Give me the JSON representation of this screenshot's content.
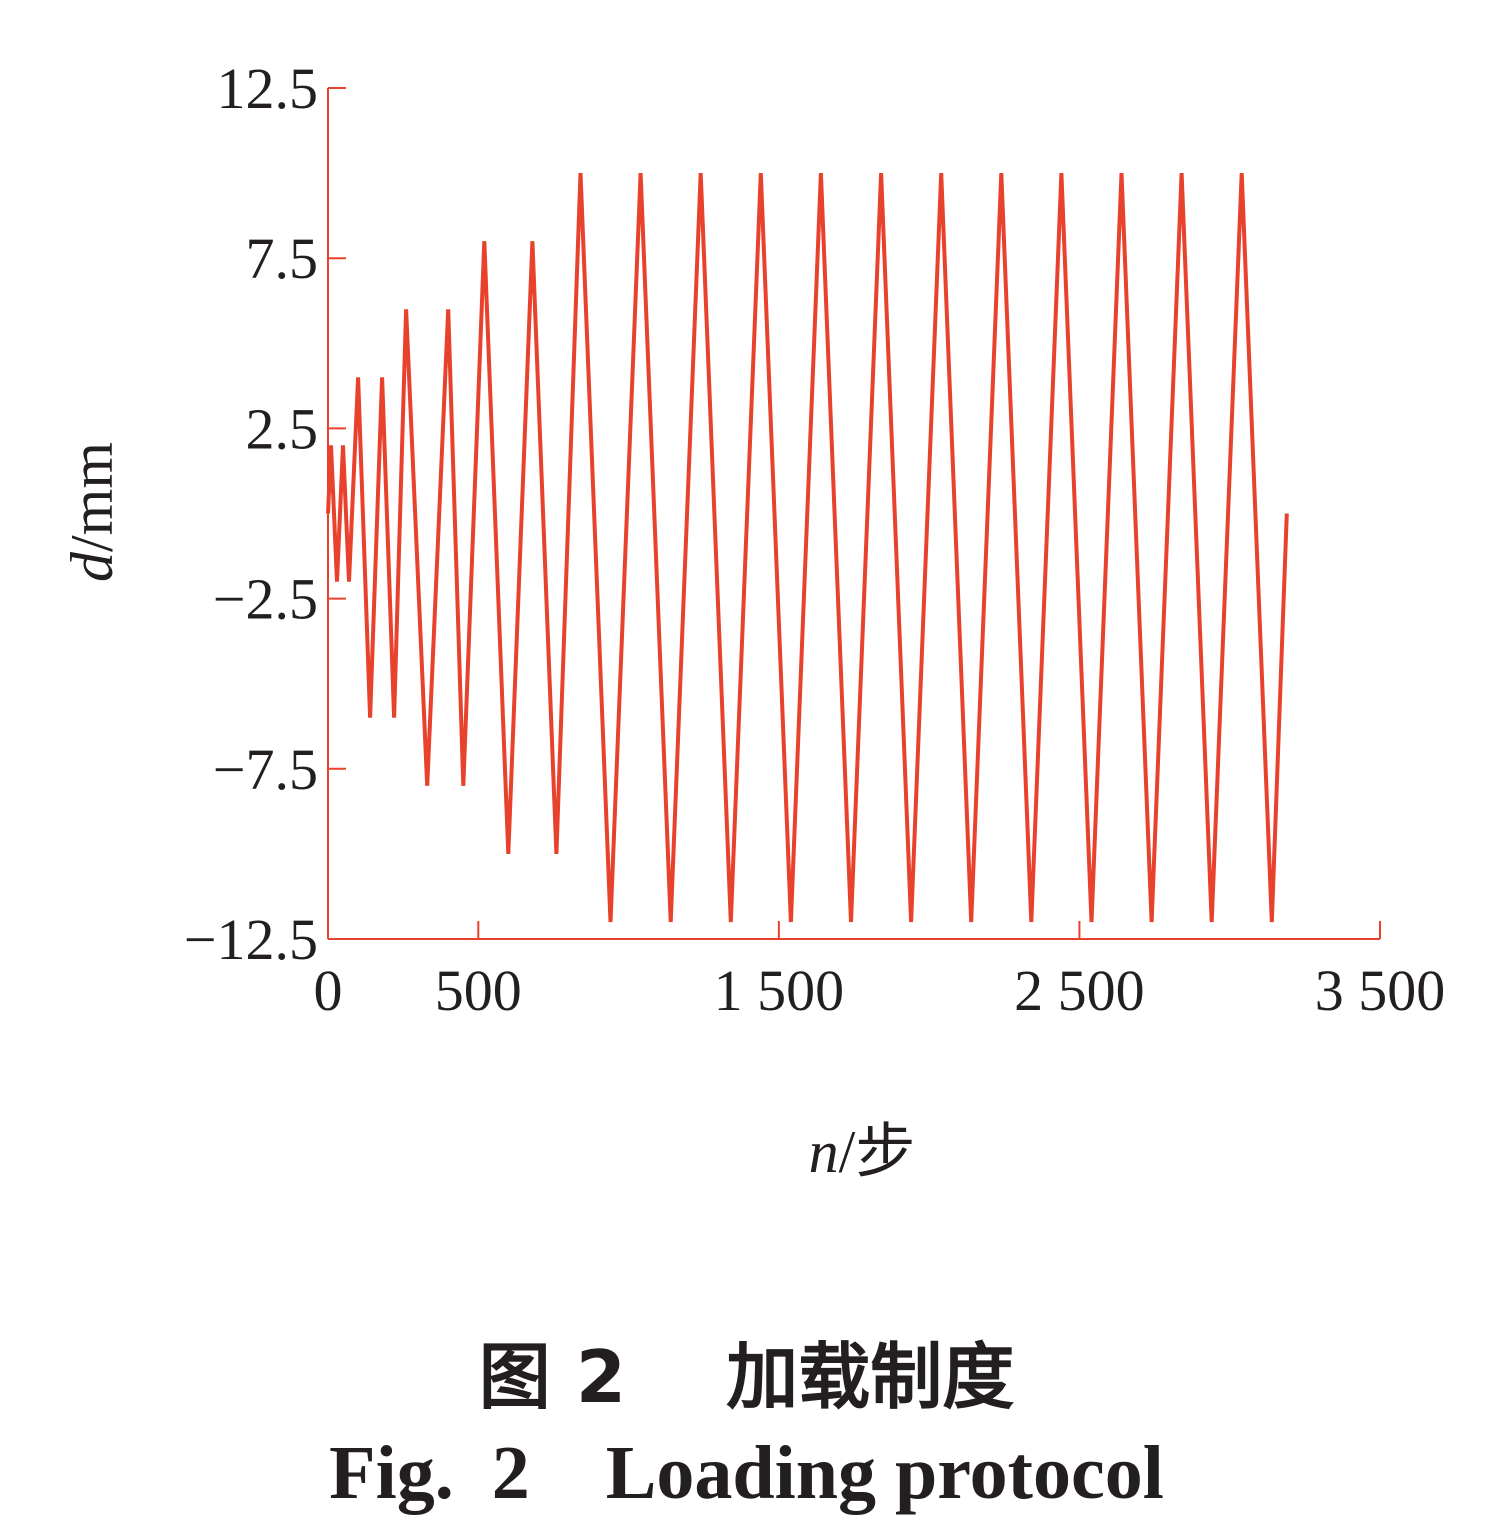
{
  "chart_data": {
    "type": "line",
    "title": "",
    "xlabel_var": "n",
    "xlabel_unit": "/步",
    "ylabel_var": "d",
    "ylabel_unit": "/mm",
    "xlim": [
      0,
      3500
    ],
    "ylim": [
      -12.5,
      12.5
    ],
    "x_ticks": [
      0,
      500,
      1500,
      2500,
      3500
    ],
    "x_tick_labels": [
      "0",
      "500",
      "1 500",
      "2 500",
      "3 500"
    ],
    "y_ticks": [
      12.5,
      7.5,
      2.5,
      -2.5,
      -7.5,
      -12.5
    ],
    "y_tick_labels": [
      "12.5",
      "7.5",
      "2.5",
      "−2.5",
      "−7.5",
      "−12.5"
    ],
    "grid": false,
    "line_color": "#e8412c",
    "series": [
      {
        "x": [
          0,
          10,
          30,
          50,
          70,
          100,
          140,
          180,
          220,
          260,
          330,
          400,
          450,
          520,
          600,
          680,
          760,
          840,
          940,
          1040,
          1140,
          1240,
          1340,
          1440,
          1540,
          1640,
          1740,
          1840,
          1940,
          2040,
          2140,
          2240,
          2340,
          2440,
          2540,
          2640,
          2740,
          2840,
          2940,
          3040,
          3140,
          3190
        ],
        "y": [
          0,
          2,
          -2,
          2,
          -2,
          4,
          -6,
          4,
          -6,
          6,
          -8,
          6,
          -8,
          8,
          -10,
          8,
          -10,
          10,
          -12,
          10,
          -12,
          10,
          -12,
          10,
          -12,
          10,
          -12,
          10,
          -12,
          10,
          -12,
          10,
          -12,
          10,
          -12,
          10,
          -12,
          10,
          -12,
          10,
          -12,
          0
        ]
      }
    ]
  },
  "captions": {
    "cn": "图 2    加载制度",
    "en": "Fig.  2    Loading protocol"
  }
}
